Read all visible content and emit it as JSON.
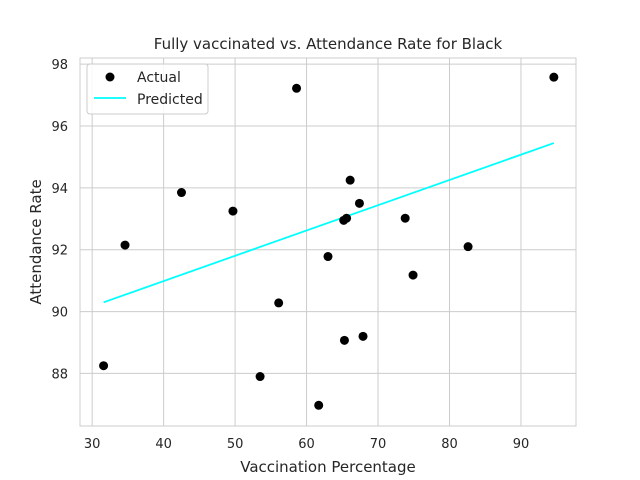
{
  "chart_data": {
    "type": "scatter",
    "title": "Fully vaccinated vs. Attendance Rate for Black",
    "xlabel": "Vaccination Percentage",
    "ylabel": "Attendance Rate",
    "xlim": [
      28.3,
      97.7
    ],
    "ylim": [
      86.3,
      98.2
    ],
    "xticks": [
      30,
      40,
      50,
      60,
      70,
      80,
      90
    ],
    "yticks": [
      88,
      90,
      92,
      94,
      96,
      98
    ],
    "grid": true,
    "legend_position": "top-left",
    "series": [
      {
        "name": "Actual",
        "kind": "scatter",
        "color": "#000000",
        "points": [
          {
            "x": 31.6,
            "y": 88.25
          },
          {
            "x": 34.6,
            "y": 92.15
          },
          {
            "x": 42.5,
            "y": 93.85
          },
          {
            "x": 49.7,
            "y": 93.25
          },
          {
            "x": 53.5,
            "y": 87.9
          },
          {
            "x": 56.1,
            "y": 90.28
          },
          {
            "x": 58.6,
            "y": 97.22
          },
          {
            "x": 61.7,
            "y": 86.97
          },
          {
            "x": 63.0,
            "y": 91.78
          },
          {
            "x": 65.2,
            "y": 92.95
          },
          {
            "x": 65.6,
            "y": 93.02
          },
          {
            "x": 65.3,
            "y": 89.07
          },
          {
            "x": 66.1,
            "y": 94.25
          },
          {
            "x": 67.4,
            "y": 93.5
          },
          {
            "x": 67.9,
            "y": 89.2
          },
          {
            "x": 73.8,
            "y": 93.02
          },
          {
            "x": 74.9,
            "y": 91.18
          },
          {
            "x": 82.6,
            "y": 92.1
          },
          {
            "x": 94.6,
            "y": 97.58
          }
        ]
      },
      {
        "name": "Predicted",
        "kind": "line",
        "color": "#00ffff",
        "points": [
          {
            "x": 31.6,
            "y": 90.3
          },
          {
            "x": 94.6,
            "y": 95.45
          }
        ]
      }
    ]
  }
}
